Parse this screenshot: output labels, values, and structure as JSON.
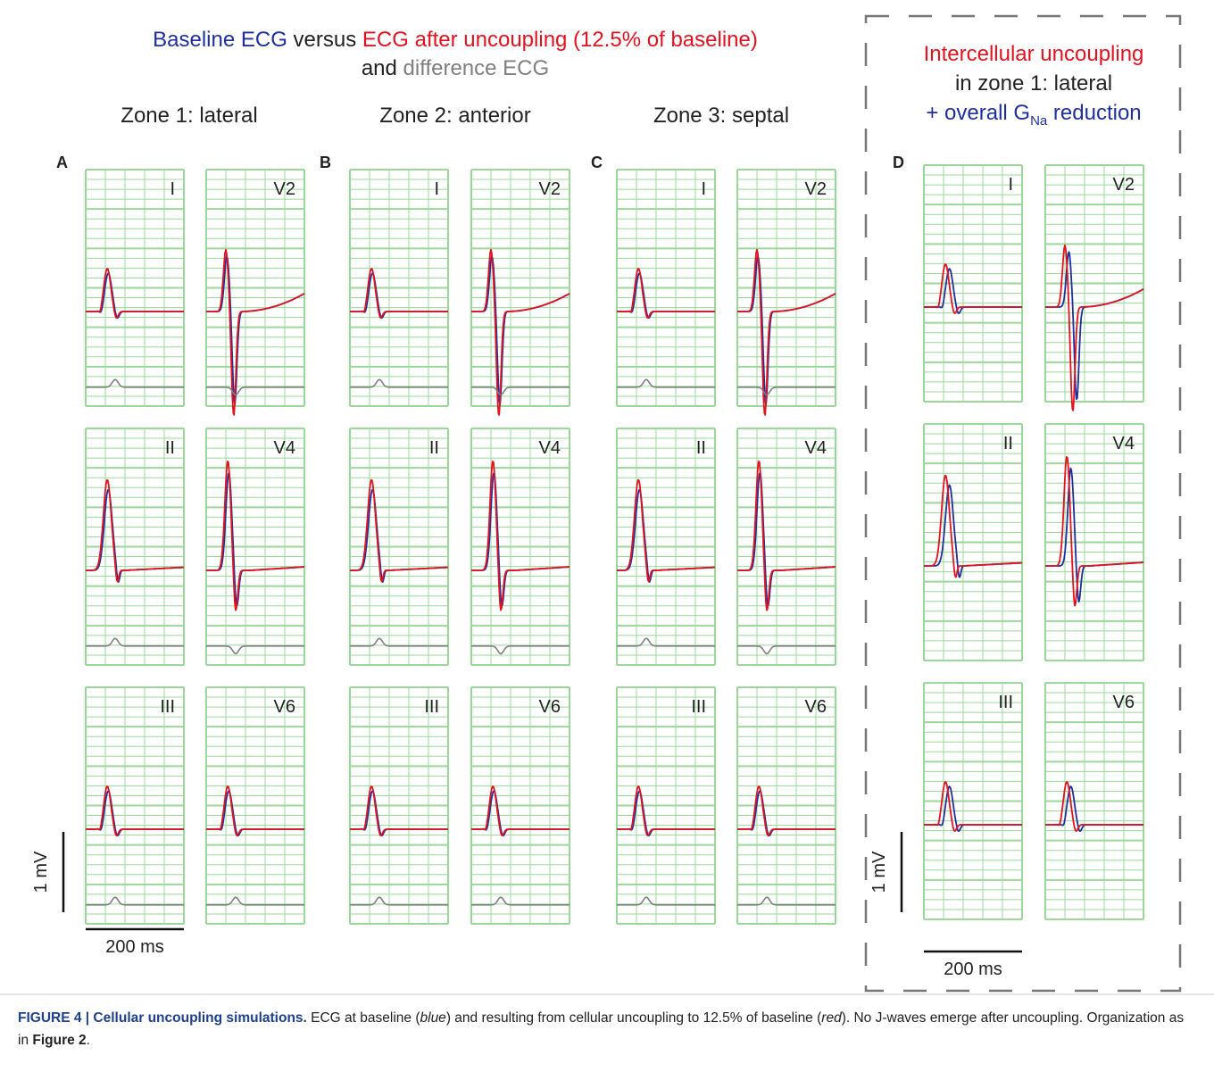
{
  "colors": {
    "baseline": "#1f2f9f",
    "uncoupled": "#e3121f",
    "difference": "#7f7f7f",
    "grid": "#9ad89a",
    "text": "#222222",
    "caption_accent": "#1f3f8f"
  },
  "header": {
    "part1": "Baseline ECG",
    "part2": " versus ",
    "part3": "ECG after uncoupling (12.5% of baseline)",
    "line2a": "and ",
    "line2b": "difference ECG"
  },
  "side_header": {
    "line1": "Intercellular uncoupling",
    "line2": "in zone 1: lateral",
    "line3_prefix": "+ overall G",
    "line3_sub": "Na",
    "line3_suffix": " reduction"
  },
  "panels": [
    {
      "letter": "A",
      "zone": "Zone 1: lateral"
    },
    {
      "letter": "B",
      "zone": "Zone 2: anterior"
    },
    {
      "letter": "C",
      "zone": "Zone 3: septal"
    },
    {
      "letter": "D",
      "zone": ""
    }
  ],
  "leads": [
    "I",
    "V2",
    "II",
    "V4",
    "III",
    "V6"
  ],
  "scale_bars": {
    "voltage": "1 mV",
    "time": "200 ms"
  },
  "caption": {
    "title": "FIGURE 4 | Cellular uncoupling simulations.",
    "t1": " ECG at baseline (",
    "blue": "blue",
    "t2": ") and resulting from cellular uncoupling to 12.5% of baseline (",
    "red": "red",
    "t3": "). No J-waves emerge after uncoupling. Organization as in ",
    "ref": "Figure 2",
    "t4": "."
  }
}
